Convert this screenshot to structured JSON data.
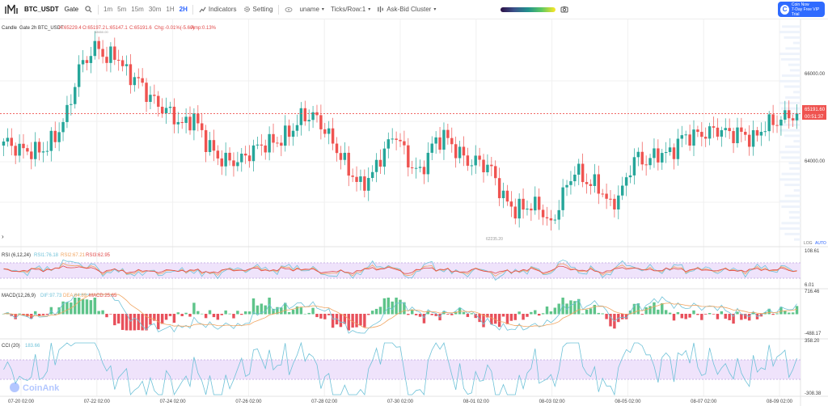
{
  "toolbar": {
    "symbol": "BTC_USDT",
    "exchange": "Gate",
    "timeframes": [
      "1m",
      "5m",
      "15m",
      "30m",
      "1H",
      "2H"
    ],
    "active_timeframe": "2H",
    "indicators_label": "Indicators",
    "setting_label": "Setting",
    "user_label": "uname",
    "ticks_label": "Ticks/Row:1",
    "cluster_label": "Ask-Bid Cluster",
    "vip_line1": "Coin Now",
    "vip_line2": "7-Day Free VIP Trial"
  },
  "legend": {
    "chart_type": "Candle",
    "symbol_line": "Gate 2h BTC_USDT",
    "high": "H:65229.4",
    "open": "O:65197.2",
    "low": "L:65147.1",
    "close": "C:65191.6",
    "change": "Chg:-0.01%(-5.60)",
    "amplitude": "Amp:0.13%",
    "peak_note": "68650.00"
  },
  "price_axis": {
    "ticks": [
      "66000.00",
      "65000.00",
      "64000.00"
    ],
    "current_price": "65191.60",
    "countdown": "00:51:37",
    "log_label": "LOG",
    "auto_label": "AUTO",
    "low_annotation": "62235.20"
  },
  "rsi": {
    "label": "RSI",
    "params": "(6,12,24)",
    "rsi1": "RSI1:76.18",
    "rsi2": "RSI2:67.21",
    "rsi3": "RSI3:62.95",
    "axis_top": "108.61",
    "axis_bottom": "6.01"
  },
  "macd": {
    "label": "MACD",
    "params": "(12,26,9)",
    "dif": "DIF:97.73",
    "dea": "DEA:84.89",
    "macd": "MACD:25.65",
    "axis_top": "716.46",
    "axis_bottom": "-488.17"
  },
  "cci": {
    "label": "CCI",
    "params": "(20)",
    "value": "183.66",
    "axis_top": "358.20",
    "axis_bottom": "-308.38"
  },
  "time_axis": [
    "07-20 02:00",
    "07-22 02:00",
    "07-24 02:00",
    "07-26 02:00",
    "07-28 02:00",
    "07-30 02:00",
    "08-01 02:00",
    "08-03 02:00",
    "08-05 02:00",
    "08-07 02:00",
    "08-09 02:00"
  ],
  "watermark": "CoinAnk",
  "colors": {
    "up": "#26a69a",
    "down": "#ef5350",
    "up_bar": "#5ec48a",
    "down_bar": "#e8505b",
    "rsi_band": "#efe3fb",
    "accent": "#2962ff"
  },
  "chart_data": {
    "type": "candlestick",
    "ylim": [
      62000,
      67400
    ],
    "close_anchors": [
      [
        0,
        64500
      ],
      [
        4,
        64300
      ],
      [
        8,
        64250
      ],
      [
        10,
        64300
      ],
      [
        13,
        64600
      ],
      [
        16,
        65200
      ],
      [
        19,
        66300
      ],
      [
        22,
        66700
      ],
      [
        24,
        66850
      ],
      [
        26,
        66500
      ],
      [
        28,
        66700
      ],
      [
        31,
        66200
      ],
      [
        34,
        66000
      ],
      [
        36,
        65700
      ],
      [
        39,
        65400
      ],
      [
        42,
        65200
      ],
      [
        45,
        64900
      ],
      [
        48,
        65100
      ],
      [
        51,
        64500
      ],
      [
        54,
        64100
      ],
      [
        57,
        64000
      ],
      [
        60,
        64050
      ],
      [
        63,
        64300
      ],
      [
        66,
        64450
      ],
      [
        69,
        64500
      ],
      [
        72,
        64700
      ],
      [
        75,
        65100
      ],
      [
        78,
        65150
      ],
      [
        81,
        64800
      ],
      [
        84,
        64300
      ],
      [
        87,
        63800
      ],
      [
        90,
        63400
      ],
      [
        93,
        63700
      ],
      [
        96,
        64300
      ],
      [
        99,
        64700
      ],
      [
        102,
        64000
      ],
      [
        105,
        63700
      ],
      [
        108,
        64400
      ],
      [
        111,
        64650
      ],
      [
        114,
        64300
      ],
      [
        117,
        64000
      ],
      [
        120,
        64000
      ],
      [
        123,
        63800
      ],
      [
        126,
        63100
      ],
      [
        129,
        62800
      ],
      [
        132,
        62900
      ],
      [
        135,
        62900
      ],
      [
        138,
        62400
      ],
      [
        141,
        63200
      ],
      [
        144,
        63800
      ],
      [
        147,
        63500
      ],
      [
        150,
        63400
      ],
      [
        153,
        62900
      ],
      [
        156,
        63300
      ],
      [
        159,
        64100
      ],
      [
        162,
        64000
      ],
      [
        165,
        64200
      ],
      [
        168,
        64200
      ],
      [
        171,
        64600
      ],
      [
        174,
        64650
      ],
      [
        177,
        64700
      ],
      [
        180,
        64800
      ],
      [
        183,
        64700
      ],
      [
        186,
        64700
      ],
      [
        189,
        64550
      ],
      [
        192,
        64900
      ],
      [
        195,
        65000
      ],
      [
        198,
        65150
      ],
      [
        200,
        65191.6
      ]
    ]
  }
}
